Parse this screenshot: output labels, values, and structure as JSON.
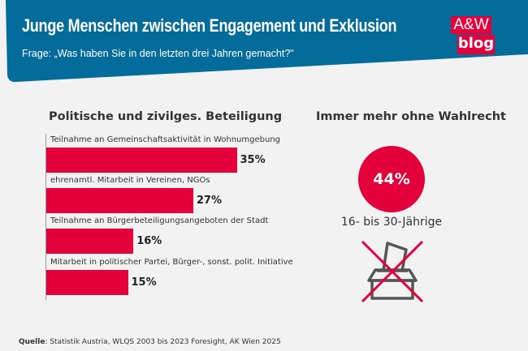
{
  "header": {
    "title": "Junge Menschen zwischen Engagement und Exklusion",
    "subtitle": "Frage: „Was haben Sie in den letzten drei Jahren gemacht?\"",
    "background_color": "#036c9b",
    "logo": {
      "line1": "A&W",
      "line2": "blog",
      "color": "#e4003a"
    }
  },
  "chart_data": [
    {
      "type": "bar",
      "orientation": "horizontal",
      "title": "Politische und zivilges. Beteiligung",
      "categories": [
        "Teilnahme an Gemeinschaftsaktivität in Wohnumgebung",
        "ehrenamtl. Mitarbeit in Vereinen, NGOs",
        "Teilnahme an Bürgerbeteiligungsangeboten der Stadt",
        "Mitarbeit in politischer Partei, Bürger-, sonst. polit. Initiative"
      ],
      "values": [
        35,
        27,
        16,
        15
      ],
      "value_labels": [
        "35%",
        "27%",
        "16%",
        "15%"
      ],
      "unit": "%",
      "bar_color": "#e4003a",
      "grid": false
    }
  ],
  "right_panel": {
    "title": "Immer mehr ohne Wahlrecht",
    "value": 44,
    "value_label": "44%",
    "caption": "16- bis 30-Jährige",
    "icon": "crossed-out-ballot-box-icon"
  },
  "source": {
    "label": "Quelle",
    "text": ": Statistik Austria, WLQS 2003 bis 2023 Foresight, AK Wien 2025"
  }
}
